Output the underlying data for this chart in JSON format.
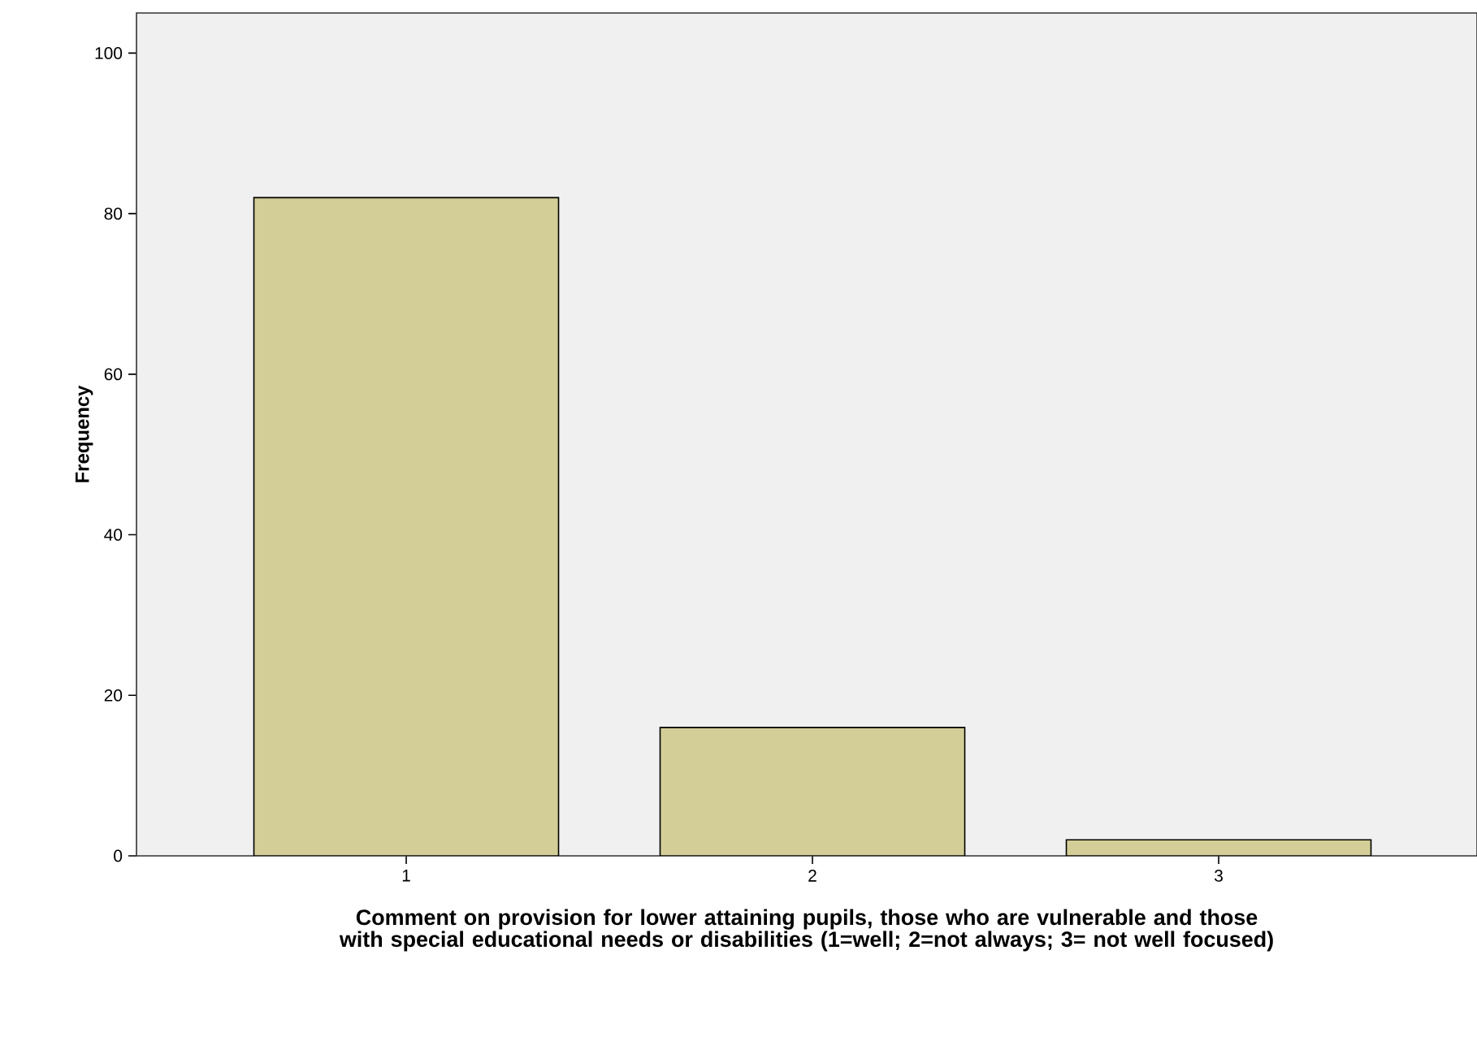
{
  "chart_data": {
    "type": "bar",
    "xlabel": "Comment on provision for lower attaining pupils, those who are vulnerable and those with special educational needs or disabilities (1=well; 2=not always; 3= not well focused)",
    "ylabel": "Frequency",
    "categories": [
      "1",
      "2",
      "3"
    ],
    "values": [
      82,
      16,
      2
    ],
    "color": "#d3ce97",
    "ylim": [
      0,
      105
    ],
    "yticks": [
      0,
      20,
      40,
      60,
      80,
      100
    ],
    "grid": false
  }
}
